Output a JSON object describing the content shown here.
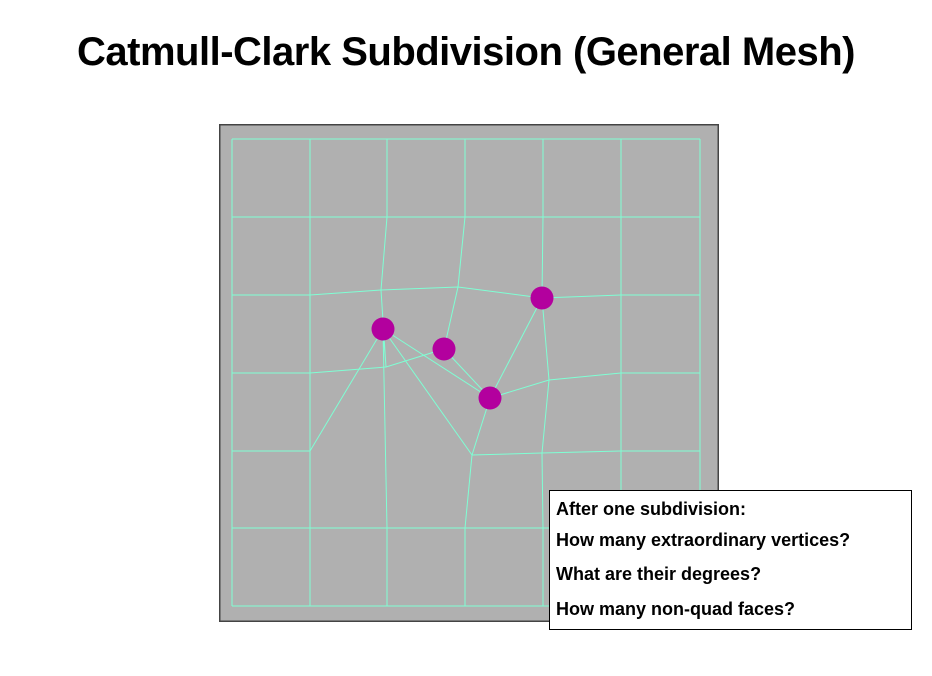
{
  "title": "Catmull-Clark Subdivision (General Mesh)",
  "figure": {
    "background_color": "#b0b0b0",
    "border_color": "#444444",
    "edge_color": "#7fffd4",
    "vertex_color": "#b3009e",
    "extraordinary_vertices": [
      {
        "id": "v1"
      },
      {
        "id": "v2"
      },
      {
        "id": "v3"
      },
      {
        "id": "v4"
      }
    ]
  },
  "question_box": {
    "line1": "After one subdivision:",
    "line2": "How many extraordinary vertices?",
    "line3": "What are their degrees?",
    "line4": "How many non-quad faces?"
  }
}
